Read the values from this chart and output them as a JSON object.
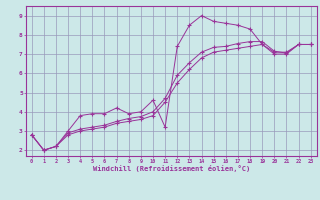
{
  "xlabel": "Windchill (Refroidissement éolien,°C)",
  "bg_color": "#cce8e8",
  "grid_color": "#9999bb",
  "line_color": "#993399",
  "xlim": [
    -0.5,
    23.5
  ],
  "ylim": [
    1.7,
    9.5
  ],
  "xticks": [
    0,
    1,
    2,
    3,
    4,
    5,
    6,
    7,
    8,
    9,
    10,
    11,
    12,
    13,
    14,
    15,
    16,
    17,
    18,
    19,
    20,
    21,
    22,
    23
  ],
  "yticks": [
    2,
    3,
    4,
    5,
    6,
    7,
    8,
    9
  ],
  "line1_x": [
    0,
    1,
    2,
    3,
    4,
    5,
    6,
    7,
    8,
    9,
    10,
    11,
    12,
    13,
    14,
    15,
    16,
    17,
    18,
    19,
    20,
    21,
    22,
    23
  ],
  "line1_y": [
    2.8,
    2.0,
    2.2,
    3.0,
    3.8,
    3.9,
    3.9,
    4.2,
    3.9,
    4.0,
    4.6,
    3.2,
    7.4,
    8.5,
    9.0,
    8.7,
    8.6,
    8.5,
    8.3,
    7.5,
    7.1,
    7.1,
    7.5,
    7.5
  ],
  "line2_x": [
    0,
    1,
    2,
    3,
    4,
    5,
    6,
    7,
    8,
    9,
    10,
    11,
    12,
    13,
    14,
    15,
    16,
    17,
    18,
    19,
    20,
    21,
    22,
    23
  ],
  "line2_y": [
    2.8,
    2.0,
    2.2,
    2.8,
    3.0,
    3.1,
    3.2,
    3.4,
    3.5,
    3.6,
    3.8,
    4.5,
    5.5,
    6.2,
    6.8,
    7.1,
    7.2,
    7.3,
    7.4,
    7.5,
    7.0,
    7.0,
    7.5,
    7.5
  ],
  "line3_x": [
    0,
    1,
    2,
    3,
    4,
    5,
    6,
    7,
    8,
    9,
    10,
    11,
    12,
    13,
    14,
    15,
    16,
    17,
    18,
    19,
    20,
    21,
    22,
    23
  ],
  "line3_y": [
    2.8,
    2.0,
    2.2,
    2.9,
    3.1,
    3.2,
    3.3,
    3.5,
    3.65,
    3.75,
    4.0,
    4.7,
    5.9,
    6.55,
    7.1,
    7.35,
    7.4,
    7.55,
    7.65,
    7.65,
    7.15,
    7.05,
    7.5,
    7.5
  ]
}
